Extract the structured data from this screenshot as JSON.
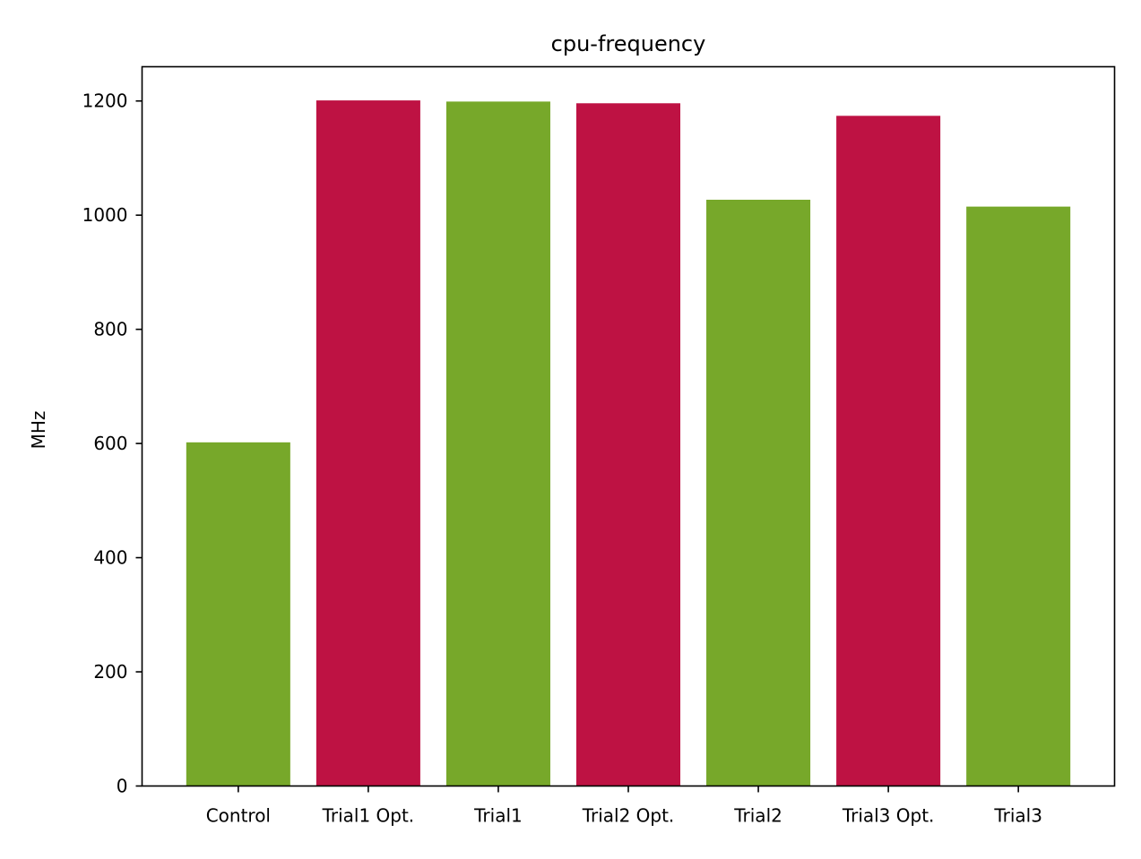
{
  "chart_data": {
    "type": "bar",
    "title": "cpu-frequency",
    "xlabel": "",
    "ylabel": "MHz",
    "categories": [
      "Control",
      "Trial1 Opt.",
      "Trial1",
      "Trial2 Opt.",
      "Trial2",
      "Trial3 Opt.",
      "Trial3"
    ],
    "values": [
      602,
      1201,
      1199,
      1196,
      1027,
      1174,
      1015
    ],
    "bar_colors": [
      "#77a82a",
      "#be1243",
      "#77a82a",
      "#be1243",
      "#77a82a",
      "#be1243",
      "#77a82a"
    ],
    "ylim": [
      0,
      1260
    ],
    "yticks": [
      0,
      200,
      400,
      600,
      800,
      1000,
      1200
    ],
    "grid": false,
    "legend": "none"
  }
}
